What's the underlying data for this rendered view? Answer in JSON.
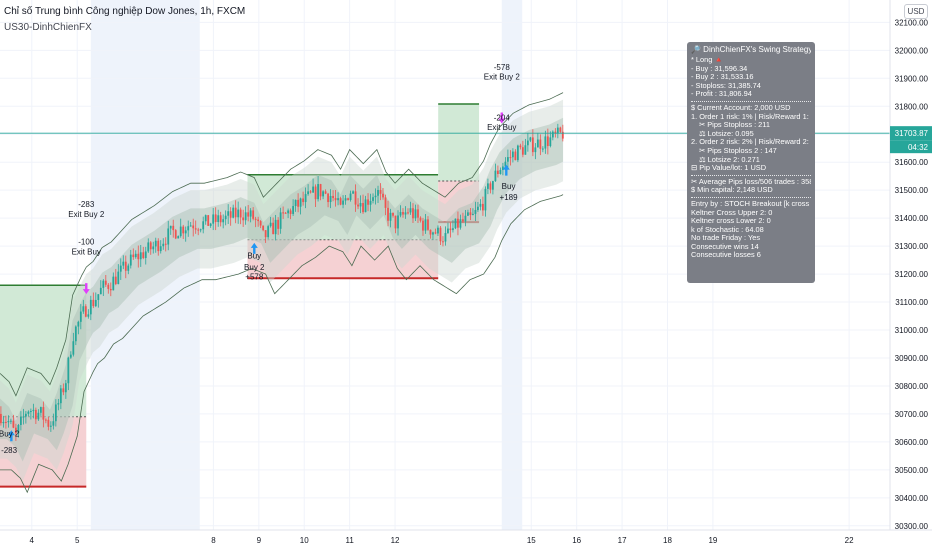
{
  "header": {
    "title": "Chỉ số Trung bình Công nghiệp Dow Jones, 1h, FXCM",
    "subtitle": "US30-DinhChienFX"
  },
  "currency_button": "USD",
  "price_tag": {
    "value": "31703.87",
    "countdown": "04:32"
  },
  "strategy_panel": {
    "title": "🔎 DinhChienFX's Swing Strategy",
    "lines": [
      "* Long 🔺",
      "- Buy   : 31,596.34",
      "- Buy 2  : 31,533.16",
      "- Stoploss: 31,385.74",
      "- Profit  : 31,806.94",
      "—",
      "$ Current Account: 2,000 USD",
      "1. Order 1 risk: 1% | Risk/Reward 1: 1/1",
      "> ✂ Pips Stoploss : 211",
      "> ⚖ Lotsize: 0.095",
      "2. Order 2 risk: 2% | Risk/Reward 2: 1/1.86",
      "> ✂ Pips Stoploss 2 : 147",
      "> ⚖ Lotsize 2: 0.271",
      "⊟ Pip Value/lot: 1 USD",
      "—",
      "✂ Average Pips loss/506 trades : 358",
      "$ Min capital: 2,148 USD",
      "—",
      "Entry by : STOCH Breakout [k cross d]",
      "Keltner Cross Upper 2: 0",
      "Keltner cross Lower 2: 0",
      "k of Stochastic : 64.08",
      "No trade Friday : Yes",
      "Consecutive wins 14",
      "Consecutive losses 6"
    ]
  },
  "trade_labels": [
    {
      "text": "Buy 2",
      "x": 12.0,
      "y": 30620
    },
    {
      "text": "-283",
      "x": 12.0,
      "y": 30560
    },
    {
      "text": "-283",
      "x": 57.7,
      "y": 31440
    },
    {
      "text": "Exit Buy 2",
      "x": 57.7,
      "y": 31405
    },
    {
      "text": "-100",
      "x": 57.7,
      "y": 31305
    },
    {
      "text": "Exit Buy",
      "x": 57.7,
      "y": 31270
    },
    {
      "text": "Buy",
      "x": 97.6,
      "y": 31255
    },
    {
      "text": "Buy 2",
      "x": 97.6,
      "y": 31215
    },
    {
      "text": "+578",
      "x": 97.6,
      "y": 31180
    },
    {
      "text": "-578",
      "x": 150.0,
      "y": 31930
    },
    {
      "text": "Exit Buy 2",
      "x": 150.0,
      "y": 31895
    },
    {
      "text": "-204",
      "x": 150.0,
      "y": 31750
    },
    {
      "text": "Exit Buy",
      "x": 150.0,
      "y": 31715
    },
    {
      "text": "Buy",
      "x": 150.5,
      "y": 31505
    },
    {
      "text": "+189",
      "x": 150.5,
      "y": 31465
    }
  ],
  "chart_data": {
    "type": "candlestick",
    "x_axis": {
      "ticks": [
        {
          "label": "4",
          "x": 4
        },
        {
          "label": "5",
          "x": 5
        },
        {
          "label": "8",
          "x": 8
        },
        {
          "label": "9",
          "x": 9
        },
        {
          "label": "10",
          "x": 10
        },
        {
          "label": "11",
          "x": 11
        },
        {
          "label": "12",
          "x": 12
        },
        {
          "label": "15",
          "x": 15
        },
        {
          "label": "16",
          "x": 16
        },
        {
          "label": "17",
          "x": 17
        },
        {
          "label": "18",
          "x": 18
        },
        {
          "label": "19",
          "x": 19
        },
        {
          "label": "22",
          "x": 22
        }
      ],
      "xlim": [
        3.3,
        22.9
      ],
      "weekend_bands": [
        [
          5.3,
          7.7
        ],
        [
          14.35,
          14.8
        ]
      ]
    },
    "y_axis": {
      "ticks": [
        30300,
        30400,
        30500,
        30600,
        30700,
        30800,
        30900,
        31000,
        31100,
        31200,
        31300,
        31400,
        31500,
        31600,
        31700,
        31800,
        31900,
        32000,
        32100
      ],
      "ylim": [
        30285,
        32180
      ],
      "last_price": 31703.87
    },
    "candle_anchors": [
      [
        3.3,
        30700
      ],
      [
        3.5,
        30670
      ],
      [
        3.65,
        30620
      ],
      [
        3.9,
        30720
      ],
      [
        4.2,
        30700
      ],
      [
        4.4,
        30660
      ],
      [
        4.55,
        30720
      ],
      [
        4.75,
        30820
      ],
      [
        4.9,
        30980
      ],
      [
        5.1,
        31050
      ],
      [
        5.2,
        31080
      ],
      [
        5.35,
        31100
      ],
      [
        5.55,
        31150
      ],
      [
        5.75,
        31170
      ],
      [
        6.2,
        31250
      ],
      [
        6.7,
        31300
      ],
      [
        7.1,
        31350
      ],
      [
        7.5,
        31380
      ],
      [
        7.8,
        31380
      ],
      [
        8.3,
        31400
      ],
      [
        8.6,
        31420
      ],
      [
        8.9,
        31400
      ],
      [
        9.1,
        31330
      ],
      [
        9.4,
        31380
      ],
      [
        9.7,
        31430
      ],
      [
        10.0,
        31460
      ],
      [
        10.3,
        31500
      ],
      [
        10.6,
        31480
      ],
      [
        10.8,
        31430
      ],
      [
        11.0,
        31500
      ],
      [
        11.3,
        31450
      ],
      [
        11.6,
        31500
      ],
      [
        11.8,
        31420
      ],
      [
        12.0,
        31380
      ],
      [
        12.3,
        31430
      ],
      [
        12.6,
        31380
      ],
      [
        12.9,
        31350
      ],
      [
        13.1,
        31330
      ],
      [
        13.4,
        31380
      ],
      [
        13.7,
        31400
      ],
      [
        13.95,
        31460
      ],
      [
        14.1,
        31520
      ],
      [
        14.3,
        31580
      ],
      [
        14.6,
        31630
      ],
      [
        14.95,
        31660
      ],
      [
        15.4,
        31680
      ],
      [
        15.7,
        31703.87
      ]
    ],
    "bands": {
      "outer_upper_offset": 120,
      "outer_lower_offset": -160,
      "inner_upper_offset": 55,
      "inner_lower_offset": -90
    },
    "trade_boxes": [
      {
        "x0": 3.3,
        "x1": 5.2,
        "entry": 30690,
        "target": 31160,
        "stop": 30440
      },
      {
        "x0": 8.75,
        "x1": 12.95,
        "entry": 31323,
        "target": 31555,
        "stop": 31185
      },
      {
        "x0": 12.95,
        "x1": 13.85,
        "entry": 31533,
        "target": 31808,
        "stop": 31386
      }
    ],
    "arrows": [
      {
        "kind": "buy",
        "x": 3.55,
        "y": 30620
      },
      {
        "kind": "exit",
        "x": 5.2,
        "y": 31150
      },
      {
        "kind": "buy",
        "x": 8.9,
        "y": 31290
      },
      {
        "kind": "exit",
        "x": 14.35,
        "y": 31760
      },
      {
        "kind": "buy",
        "x": 14.45,
        "y": 31570
      }
    ],
    "colors": {
      "up": "#26a69a",
      "down": "#ef5350",
      "profit_fill": "#d1e9d6",
      "loss_fill": "#f5d1d3",
      "target_line": "#2e7d32",
      "stop_line": "#c62828",
      "band_outer": "#cbd6d0",
      "band_inner": "#a9bfb4",
      "keltner_line": "#4c6b52",
      "arrow_buy": "#2196f3",
      "arrow_exit": "#e040fb",
      "last_price": "#26a69a"
    }
  }
}
